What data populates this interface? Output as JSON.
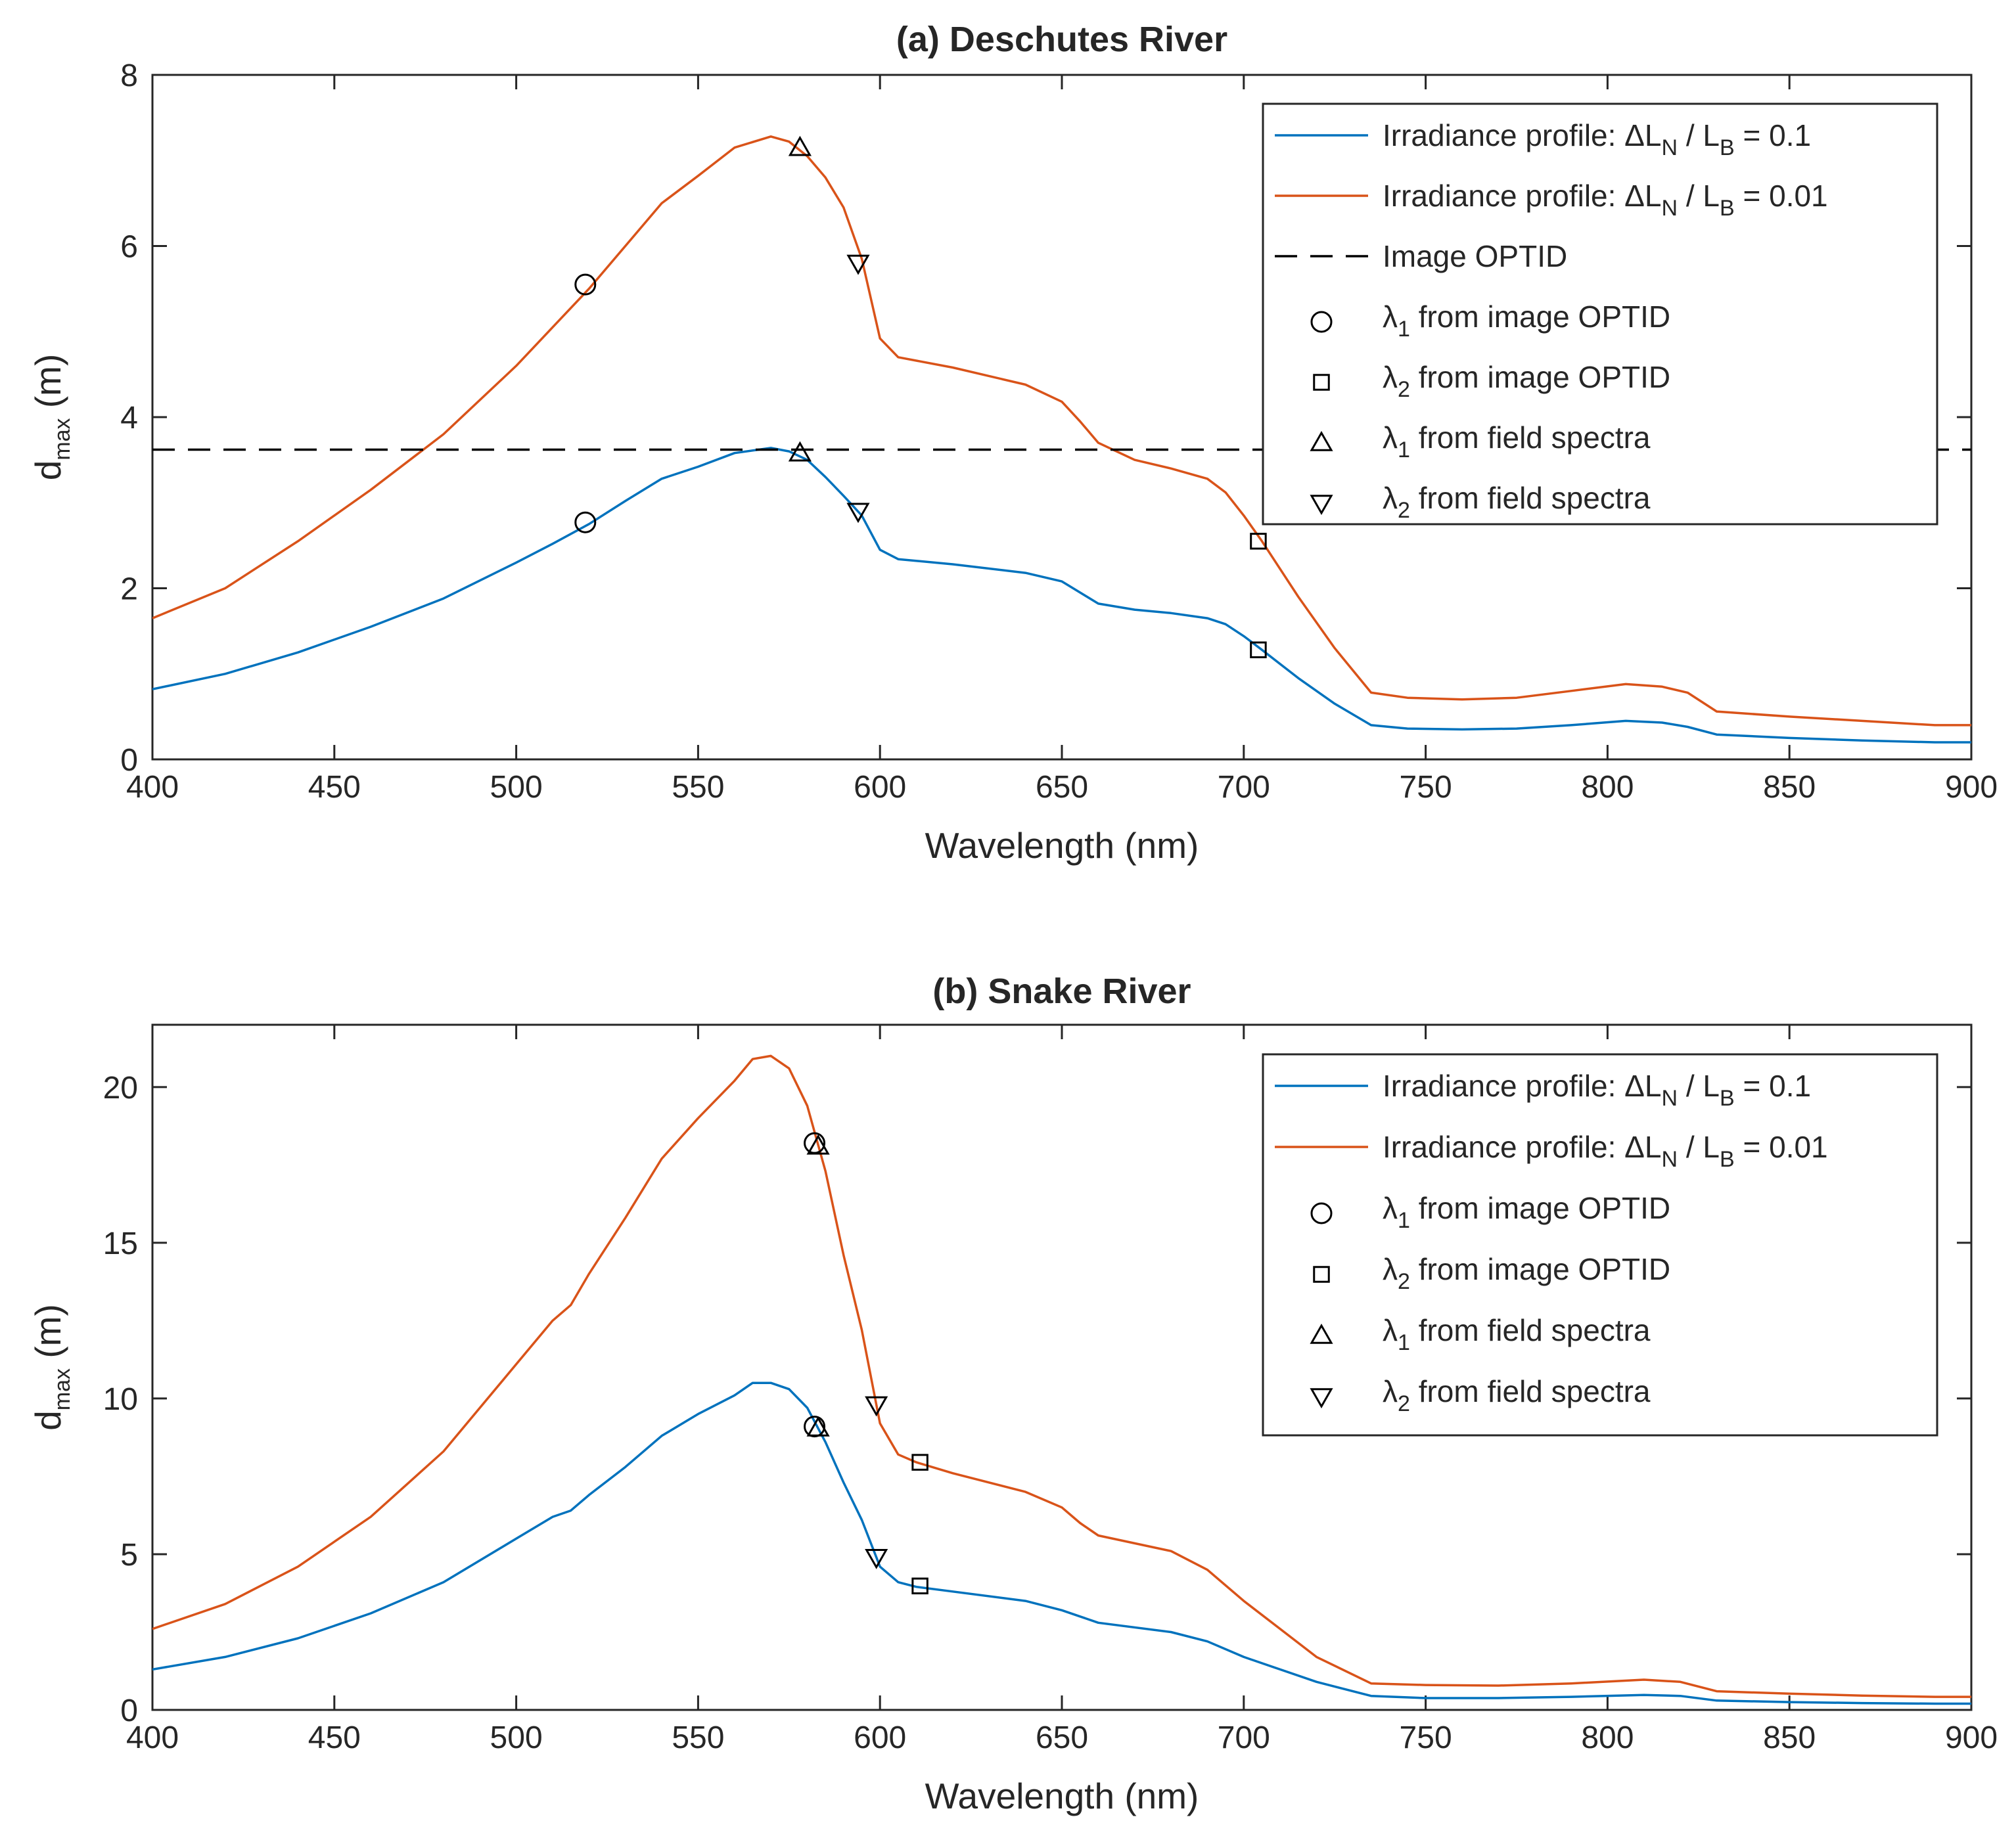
{
  "chart_data": [
    {
      "type": "line",
      "title": "(a) Deschutes River",
      "xlabel": "Wavelength (nm)",
      "ylabel": {
        "main": "d",
        "sub": "max",
        "rest": " (m)"
      },
      "xlim": [
        400,
        900
      ],
      "ylim": [
        0,
        8
      ],
      "xticks": [
        400,
        450,
        500,
        550,
        600,
        650,
        700,
        750,
        800,
        850,
        900
      ],
      "yticks": [
        0,
        2,
        4,
        6,
        8
      ],
      "colors": {
        "blue": "#0072BD",
        "orange": "#D95319",
        "black": "#000000"
      },
      "series": [
        {
          "name": "Irradiance profile: ΔLN / LB = 0.1",
          "color": "#0072BD",
          "points": [
            [
              400,
              0.82
            ],
            [
              420,
              1.0
            ],
            [
              440,
              1.25
            ],
            [
              460,
              1.55
            ],
            [
              480,
              1.88
            ],
            [
              500,
              2.3
            ],
            [
              510,
              2.52
            ],
            [
              520,
              2.75
            ],
            [
              530,
              3.02
            ],
            [
              540,
              3.28
            ],
            [
              550,
              3.42
            ],
            [
              560,
              3.58
            ],
            [
              570,
              3.64
            ],
            [
              575,
              3.6
            ],
            [
              580,
              3.5
            ],
            [
              585,
              3.3
            ],
            [
              590,
              3.08
            ],
            [
              595,
              2.85
            ],
            [
              600,
              2.45
            ],
            [
              605,
              2.34
            ],
            [
              620,
              2.28
            ],
            [
              640,
              2.18
            ],
            [
              650,
              2.08
            ],
            [
              655,
              1.95
            ],
            [
              660,
              1.82
            ],
            [
              670,
              1.75
            ],
            [
              680,
              1.71
            ],
            [
              690,
              1.65
            ],
            [
              695,
              1.58
            ],
            [
              700,
              1.44
            ],
            [
              705,
              1.28
            ],
            [
              715,
              0.95
            ],
            [
              725,
              0.65
            ],
            [
              735,
              0.4
            ],
            [
              745,
              0.36
            ],
            [
              760,
              0.35
            ],
            [
              775,
              0.36
            ],
            [
              790,
              0.4
            ],
            [
              805,
              0.45
            ],
            [
              815,
              0.43
            ],
            [
              822,
              0.38
            ],
            [
              830,
              0.29
            ],
            [
              850,
              0.25
            ],
            [
              870,
              0.22
            ],
            [
              890,
              0.2
            ],
            [
              900,
              0.2
            ]
          ]
        },
        {
          "name": "Irradiance profile: ΔLN / LB = 0.01",
          "color": "#D95319",
          "points": [
            [
              400,
              1.65
            ],
            [
              420,
              2.0
            ],
            [
              440,
              2.55
            ],
            [
              460,
              3.15
            ],
            [
              480,
              3.8
            ],
            [
              500,
              4.6
            ],
            [
              510,
              5.05
            ],
            [
              520,
              5.5
            ],
            [
              530,
              6.0
            ],
            [
              540,
              6.5
            ],
            [
              550,
              6.82
            ],
            [
              560,
              7.15
            ],
            [
              570,
              7.28
            ],
            [
              575,
              7.22
            ],
            [
              580,
              7.05
            ],
            [
              585,
              6.8
            ],
            [
              590,
              6.45
            ],
            [
              595,
              5.85
            ],
            [
              600,
              4.92
            ],
            [
              605,
              4.7
            ],
            [
              620,
              4.58
            ],
            [
              640,
              4.38
            ],
            [
              650,
              4.18
            ],
            [
              655,
              3.95
            ],
            [
              660,
              3.7
            ],
            [
              670,
              3.5
            ],
            [
              680,
              3.4
            ],
            [
              690,
              3.28
            ],
            [
              695,
              3.12
            ],
            [
              700,
              2.85
            ],
            [
              705,
              2.55
            ],
            [
              715,
              1.9
            ],
            [
              725,
              1.3
            ],
            [
              735,
              0.78
            ],
            [
              745,
              0.72
            ],
            [
              760,
              0.7
            ],
            [
              775,
              0.72
            ],
            [
              790,
              0.8
            ],
            [
              805,
              0.88
            ],
            [
              815,
              0.85
            ],
            [
              822,
              0.78
            ],
            [
              830,
              0.56
            ],
            [
              850,
              0.5
            ],
            [
              870,
              0.45
            ],
            [
              890,
              0.4
            ],
            [
              900,
              0.4
            ]
          ]
        },
        {
          "name": "Image OPTID",
          "color": "#000000",
          "dashed": true,
          "points": [
            [
              400,
              3.62
            ],
            [
              900,
              3.62
            ]
          ]
        }
      ],
      "markers": [
        {
          "legend": "λ1 from image OPTID",
          "symbol": "circle",
          "points": [
            [
              519,
              5.55
            ],
            [
              519,
              2.77
            ]
          ]
        },
        {
          "legend": "λ2 from image OPTID",
          "symbol": "square",
          "points": [
            [
              704,
              2.55
            ],
            [
              704,
              1.28
            ]
          ]
        },
        {
          "legend": "λ1 from field spectra",
          "symbol": "triangle-up",
          "points": [
            [
              578,
              7.15
            ],
            [
              578,
              3.58
            ]
          ]
        },
        {
          "legend": "λ2 from field spectra",
          "symbol": "triangle-down",
          "points": [
            [
              594,
              5.8
            ],
            [
              594,
              2.9
            ]
          ]
        }
      ],
      "legend": {
        "position": "top-right",
        "entries": [
          {
            "kind": "line",
            "color": "#0072BD",
            "text": "Irradiance profile: ΔL",
            "s1": "N",
            "t2": " / L",
            "s2": "B",
            "t3": " = 0.1"
          },
          {
            "kind": "line",
            "color": "#D95319",
            "text": "Irradiance profile: ΔL",
            "s1": "N",
            "t2": " / L",
            "s2": "B",
            "t3": " = 0.01"
          },
          {
            "kind": "dash",
            "color": "#000000",
            "text": "Image OPTID"
          },
          {
            "kind": "circle",
            "text": "λ",
            "s1": "1",
            "t2": " from image OPTID"
          },
          {
            "kind": "square",
            "text": "λ",
            "s1": "2",
            "t2": " from image OPTID"
          },
          {
            "kind": "triangle-up",
            "text": "λ",
            "s1": "1",
            "t2": " from field spectra"
          },
          {
            "kind": "triangle-down",
            "text": "λ",
            "s1": "2",
            "t2": " from field spectra"
          }
        ]
      }
    },
    {
      "type": "line",
      "title": "(b) Snake River",
      "xlabel": "Wavelength (nm)",
      "ylabel": {
        "main": "d",
        "sub": "max",
        "rest": " (m)"
      },
      "xlim": [
        400,
        900
      ],
      "ylim": [
        0,
        22
      ],
      "xticks": [
        400,
        450,
        500,
        550,
        600,
        650,
        700,
        750,
        800,
        850,
        900
      ],
      "yticks": [
        0,
        5,
        10,
        15,
        20
      ],
      "colors": {
        "blue": "#0072BD",
        "orange": "#D95319",
        "black": "#000000"
      },
      "series": [
        {
          "name": "Irradiance profile: ΔLN / LB = 0.1",
          "color": "#0072BD",
          "points": [
            [
              400,
              1.3
            ],
            [
              420,
              1.7
            ],
            [
              440,
              2.3
            ],
            [
              460,
              3.1
            ],
            [
              480,
              4.1
            ],
            [
              500,
              5.5
            ],
            [
              510,
              6.2
            ],
            [
              515,
              6.4
            ],
            [
              520,
              6.9
            ],
            [
              530,
              7.8
            ],
            [
              540,
              8.8
            ],
            [
              550,
              9.5
            ],
            [
              560,
              10.1
            ],
            [
              565,
              10.5
            ],
            [
              570,
              10.5
            ],
            [
              575,
              10.3
            ],
            [
              580,
              9.7
            ],
            [
              585,
              8.6
            ],
            [
              590,
              7.3
            ],
            [
              595,
              6.1
            ],
            [
              600,
              4.6
            ],
            [
              605,
              4.1
            ],
            [
              610,
              3.95
            ],
            [
              620,
              3.8
            ],
            [
              640,
              3.5
            ],
            [
              650,
              3.2
            ],
            [
              655,
              3.0
            ],
            [
              660,
              2.8
            ],
            [
              680,
              2.5
            ],
            [
              690,
              2.2
            ],
            [
              700,
              1.7
            ],
            [
              710,
              1.3
            ],
            [
              720,
              0.9
            ],
            [
              735,
              0.45
            ],
            [
              750,
              0.38
            ],
            [
              770,
              0.38
            ],
            [
              790,
              0.42
            ],
            [
              810,
              0.48
            ],
            [
              820,
              0.45
            ],
            [
              830,
              0.3
            ],
            [
              850,
              0.25
            ],
            [
              870,
              0.22
            ],
            [
              890,
              0.2
            ],
            [
              900,
              0.2
            ]
          ]
        },
        {
          "name": "Irradiance profile: ΔLN / LB = 0.01",
          "color": "#D95319",
          "points": [
            [
              400,
              2.6
            ],
            [
              420,
              3.4
            ],
            [
              440,
              4.6
            ],
            [
              460,
              6.2
            ],
            [
              480,
              8.3
            ],
            [
              500,
              11.1
            ],
            [
              510,
              12.5
            ],
            [
              515,
              13.0
            ],
            [
              520,
              14.0
            ],
            [
              530,
              15.8
            ],
            [
              540,
              17.7
            ],
            [
              550,
              19.0
            ],
            [
              560,
              20.2
            ],
            [
              565,
              20.9
            ],
            [
              570,
              21.0
            ],
            [
              575,
              20.6
            ],
            [
              580,
              19.4
            ],
            [
              585,
              17.3
            ],
            [
              590,
              14.6
            ],
            [
              595,
              12.2
            ],
            [
              600,
              9.2
            ],
            [
              605,
              8.2
            ],
            [
              610,
              7.95
            ],
            [
              620,
              7.6
            ],
            [
              640,
              7.0
            ],
            [
              650,
              6.5
            ],
            [
              655,
              6.0
            ],
            [
              660,
              5.6
            ],
            [
              680,
              5.1
            ],
            [
              690,
              4.5
            ],
            [
              700,
              3.5
            ],
            [
              710,
              2.6
            ],
            [
              720,
              1.7
            ],
            [
              735,
              0.85
            ],
            [
              750,
              0.8
            ],
            [
              770,
              0.78
            ],
            [
              790,
              0.85
            ],
            [
              810,
              0.97
            ],
            [
              820,
              0.9
            ],
            [
              830,
              0.6
            ],
            [
              850,
              0.52
            ],
            [
              870,
              0.46
            ],
            [
              890,
              0.42
            ],
            [
              900,
              0.42
            ]
          ]
        }
      ],
      "markers": [
        {
          "legend": "λ1 from image OPTID",
          "symbol": "circle",
          "points": [
            [
              582,
              18.2
            ],
            [
              582,
              9.1
            ]
          ]
        },
        {
          "legend": "λ2 from image OPTID",
          "symbol": "square",
          "points": [
            [
              611,
              7.95
            ],
            [
              611,
              3.98
            ]
          ]
        },
        {
          "legend": "λ1 from field spectra",
          "symbol": "triangle-up",
          "points": [
            [
              583,
              18.1
            ],
            [
              583,
              9.05
            ]
          ]
        },
        {
          "legend": "λ2 from field spectra",
          "symbol": "triangle-down",
          "points": [
            [
              599,
              9.8
            ],
            [
              599,
              4.9
            ]
          ]
        }
      ],
      "legend": {
        "position": "top-right",
        "entries": [
          {
            "kind": "line",
            "color": "#0072BD",
            "text": "Irradiance profile: ΔL",
            "s1": "N",
            "t2": " / L",
            "s2": "B",
            "t3": " = 0.1"
          },
          {
            "kind": "line",
            "color": "#D95319",
            "text": "Irradiance profile: ΔL",
            "s1": "N",
            "t2": " / L",
            "s2": "B",
            "t3": " = 0.01"
          },
          {
            "kind": "circle",
            "text": "λ",
            "s1": "1",
            "t2": " from image OPTID"
          },
          {
            "kind": "square",
            "text": "λ",
            "s1": "2",
            "t2": " from image OPTID"
          },
          {
            "kind": "triangle-up",
            "text": "λ",
            "s1": "1",
            "t2": " from field spectra"
          },
          {
            "kind": "triangle-down",
            "text": "λ",
            "s1": "2",
            "t2": " from field spectra"
          }
        ]
      }
    }
  ]
}
